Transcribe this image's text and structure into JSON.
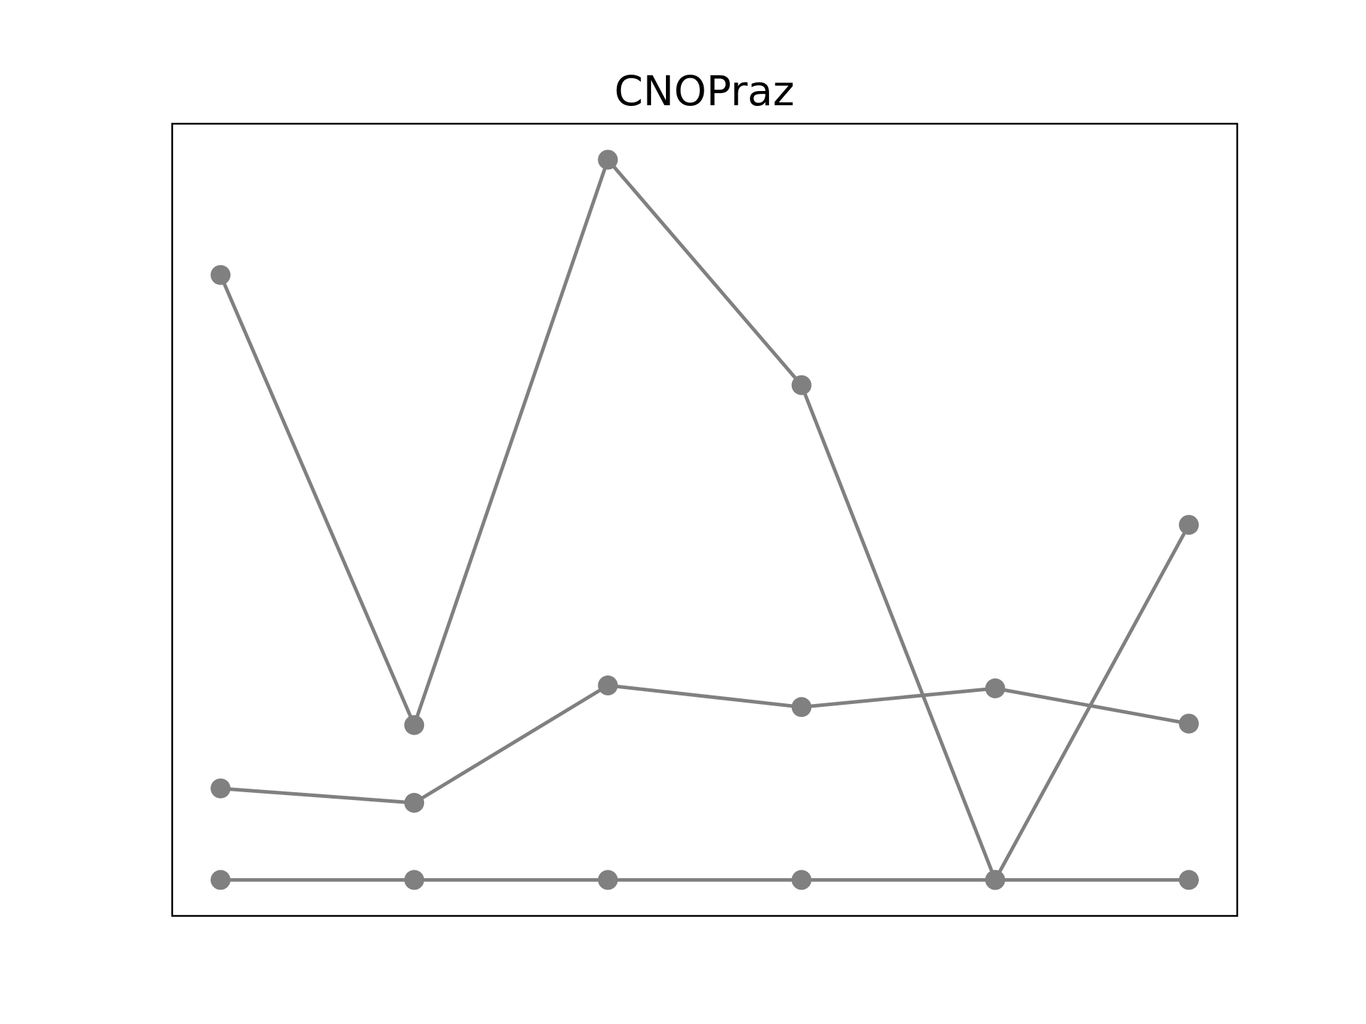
{
  "chart_data": {
    "type": "line",
    "title": "CNOPraz",
    "xlabel": "",
    "ylabel": "",
    "x": [
      0,
      1,
      2,
      3,
      4,
      5
    ],
    "ylim": [
      -0.5,
      10.5
    ],
    "grid": false,
    "legend": "none",
    "series": [
      {
        "values": [
          8.4,
          2.15,
          10.0,
          6.87,
          0,
          4.93
        ],
        "color": "#808080"
      },
      {
        "values": [
          1.27,
          1.07,
          2.7,
          2.4,
          2.66,
          2.17
        ],
        "color": "#808080"
      },
      {
        "values": [
          0,
          0,
          0,
          0,
          0,
          0
        ],
        "color": "#808080"
      }
    ]
  }
}
